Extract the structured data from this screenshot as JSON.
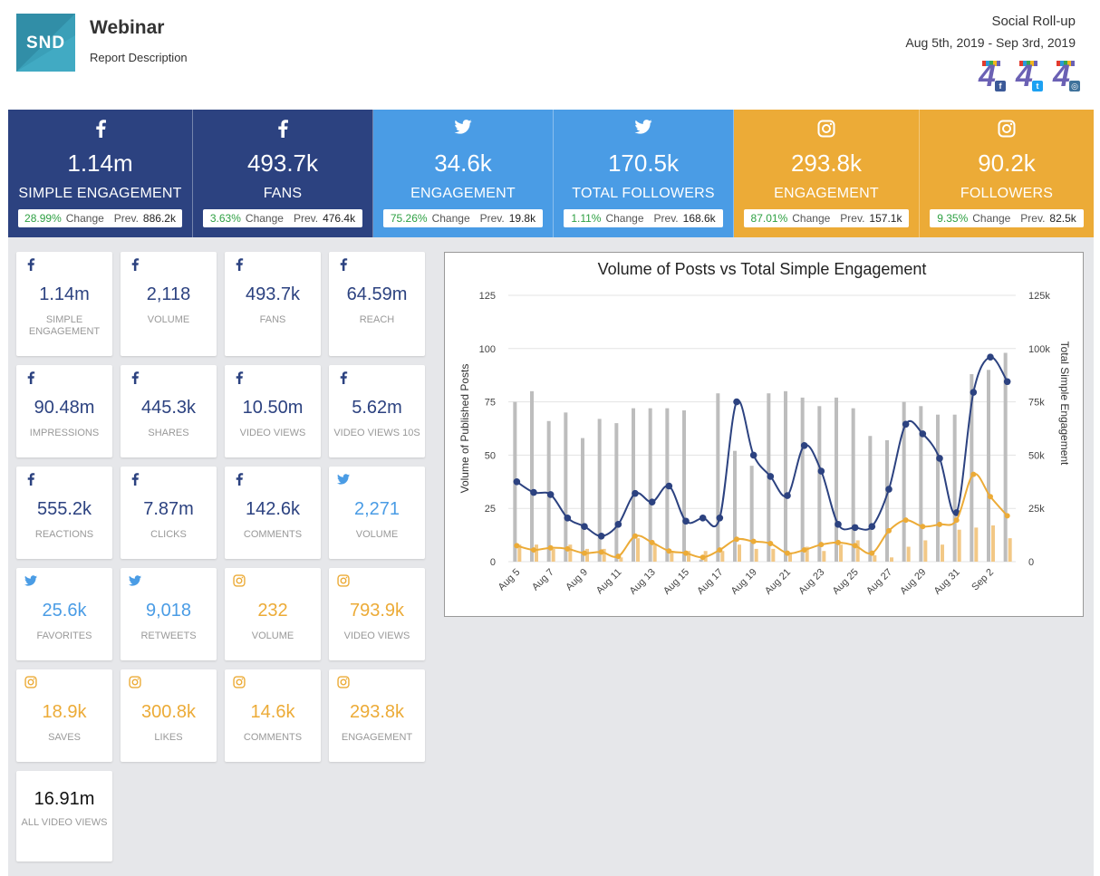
{
  "header": {
    "logo_text": "SND",
    "title": "Webinar",
    "description": "Report Description",
    "report_name": "Social Roll-up",
    "date_range": "Aug 5th, 2019 - Sep 3rd, 2019",
    "network_logos": [
      {
        "icon": "facebook-icon",
        "color": "#3b5998"
      },
      {
        "icon": "twitter-icon",
        "color": "#1da1f2"
      },
      {
        "icon": "instagram-icon",
        "color": "#3f729b"
      }
    ]
  },
  "summary": [
    {
      "network": "facebook",
      "value": "1.14m",
      "label": "SIMPLE ENGAGEMENT",
      "change": "28.99%",
      "change_label": "Change",
      "prev_label": "Prev.",
      "prev": "886.2k"
    },
    {
      "network": "facebook",
      "value": "493.7k",
      "label": "FANS",
      "change": "3.63%",
      "change_label": "Change",
      "prev_label": "Prev.",
      "prev": "476.4k"
    },
    {
      "network": "twitter",
      "value": "34.6k",
      "label": "ENGAGEMENT",
      "change": "75.26%",
      "change_label": "Change",
      "prev_label": "Prev.",
      "prev": "19.8k"
    },
    {
      "network": "twitter",
      "value": "170.5k",
      "label": "TOTAL FOLLOWERS",
      "change": "1.11%",
      "change_label": "Change",
      "prev_label": "Prev.",
      "prev": "168.6k"
    },
    {
      "network": "instagram",
      "value": "293.8k",
      "label": "ENGAGEMENT",
      "change": "87.01%",
      "change_label": "Change",
      "prev_label": "Prev.",
      "prev": "157.1k"
    },
    {
      "network": "instagram",
      "value": "90.2k",
      "label": "FOLLOWERS",
      "change": "9.35%",
      "change_label": "Change",
      "prev_label": "Prev.",
      "prev": "82.5k"
    }
  ],
  "kpis": [
    {
      "network": "facebook",
      "value": "1.14m",
      "label": "SIMPLE ENGAGEMENT"
    },
    {
      "network": "facebook",
      "value": "2,118",
      "label": "VOLUME"
    },
    {
      "network": "facebook",
      "value": "493.7k",
      "label": "FANS"
    },
    {
      "network": "facebook",
      "value": "64.59m",
      "label": "REACH"
    },
    {
      "network": "facebook",
      "value": "90.48m",
      "label": "IMPRESSIONS"
    },
    {
      "network": "facebook",
      "value": "445.3k",
      "label": "SHARES"
    },
    {
      "network": "facebook",
      "value": "10.50m",
      "label": "VIDEO VIEWS"
    },
    {
      "network": "facebook",
      "value": "5.62m",
      "label": "VIDEO VIEWS 10S"
    },
    {
      "network": "facebook",
      "value": "555.2k",
      "label": "REACTIONS"
    },
    {
      "network": "facebook",
      "value": "7.87m",
      "label": "CLICKS"
    },
    {
      "network": "facebook",
      "value": "142.6k",
      "label": "COMMENTS"
    },
    {
      "network": "twitter",
      "value": "2,271",
      "label": "VOLUME"
    },
    {
      "network": "twitter",
      "value": "25.6k",
      "label": "FAVORITES"
    },
    {
      "network": "twitter",
      "value": "9,018",
      "label": "RETWEETS"
    },
    {
      "network": "instagram",
      "value": "232",
      "label": "VOLUME"
    },
    {
      "network": "instagram",
      "value": "793.9k",
      "label": "VIDEO VIEWS"
    },
    {
      "network": "instagram",
      "value": "18.9k",
      "label": "SAVES"
    },
    {
      "network": "instagram",
      "value": "300.8k",
      "label": "LIKES"
    },
    {
      "network": "instagram",
      "value": "14.6k",
      "label": "COMMENTS"
    },
    {
      "network": "instagram",
      "value": "293.8k",
      "label": "ENGAGEMENT"
    },
    {
      "network": "all",
      "value": "16.91m",
      "label": "ALL VIDEO VIEWS"
    }
  ],
  "colors": {
    "facebook": "#2c4280",
    "twitter": "#4a9ce5",
    "instagram": "#ecab37",
    "grey_bar": "#bdbdbd",
    "change_green": "#2ea043"
  },
  "chart_data": {
    "type": "bar",
    "title": "Volume of Posts vs Total Simple Engagement",
    "ylabel": "Volume of Published Posts",
    "y2label": "Total Simple Engagement",
    "ylim": [
      0,
      125
    ],
    "y2lim": [
      0,
      125000
    ],
    "yticks": [
      "0",
      "25",
      "50",
      "75",
      "100",
      "125"
    ],
    "y2ticks": [
      "0",
      "25k",
      "50k",
      "75k",
      "100k",
      "125k"
    ],
    "x_tick_labels": [
      "Aug 5",
      "Aug 7",
      "Aug 9",
      "Aug 11",
      "Aug 13",
      "Aug 15",
      "Aug 17",
      "Aug 19",
      "Aug 21",
      "Aug 23",
      "Aug 25",
      "Aug 27",
      "Aug 29",
      "Aug 31",
      "Sep 2"
    ],
    "categories": [
      "Aug 5",
      "Aug 6",
      "Aug 7",
      "Aug 8",
      "Aug 9",
      "Aug 10",
      "Aug 11",
      "Aug 12",
      "Aug 13",
      "Aug 14",
      "Aug 15",
      "Aug 16",
      "Aug 17",
      "Aug 18",
      "Aug 19",
      "Aug 20",
      "Aug 21",
      "Aug 22",
      "Aug 23",
      "Aug 24",
      "Aug 25",
      "Aug 26",
      "Aug 27",
      "Aug 28",
      "Aug 29",
      "Aug 30",
      "Aug 31",
      "Sep 1",
      "Sep 2",
      "Sep 3"
    ],
    "series": [
      {
        "kind": "bar",
        "axis": "left",
        "color": "#bdbdbd",
        "values": [
          75,
          80,
          66,
          70,
          58,
          67,
          65,
          72,
          72,
          72,
          71,
          1,
          79,
          52,
          45,
          79,
          80,
          77,
          73,
          77,
          72,
          59,
          57,
          75,
          73,
          69,
          69,
          88,
          90,
          98
        ]
      },
      {
        "kind": "bar",
        "axis": "left",
        "color": "#f2c886",
        "values": [
          8,
          8,
          6,
          8,
          6,
          6,
          2,
          11,
          8,
          5,
          5,
          5,
          5,
          8,
          6,
          6,
          4,
          7,
          5,
          8,
          10,
          3,
          2,
          7,
          10,
          8,
          15,
          16,
          17,
          11
        ]
      },
      {
        "kind": "line",
        "axis": "right",
        "color": "#2c4280",
        "values": [
          37500,
          32500,
          31500,
          20500,
          16500,
          12000,
          17500,
          32000,
          28000,
          35500,
          19000,
          20500,
          20500,
          75000,
          50000,
          40000,
          31000,
          54500,
          42500,
          17500,
          16000,
          16500,
          34000,
          64500,
          60000,
          48500,
          23000,
          79500,
          96000,
          84500
        ]
      },
      {
        "kind": "line",
        "axis": "right",
        "color": "#ecab37",
        "values": [
          7500,
          5500,
          6500,
          6000,
          4000,
          4500,
          2500,
          12000,
          9000,
          5000,
          4000,
          2000,
          5500,
          10500,
          9500,
          8500,
          4000,
          5500,
          8000,
          9000,
          7500,
          4000,
          14500,
          19500,
          16500,
          17500,
          19500,
          41000,
          30500,
          21500
        ]
      }
    ]
  }
}
